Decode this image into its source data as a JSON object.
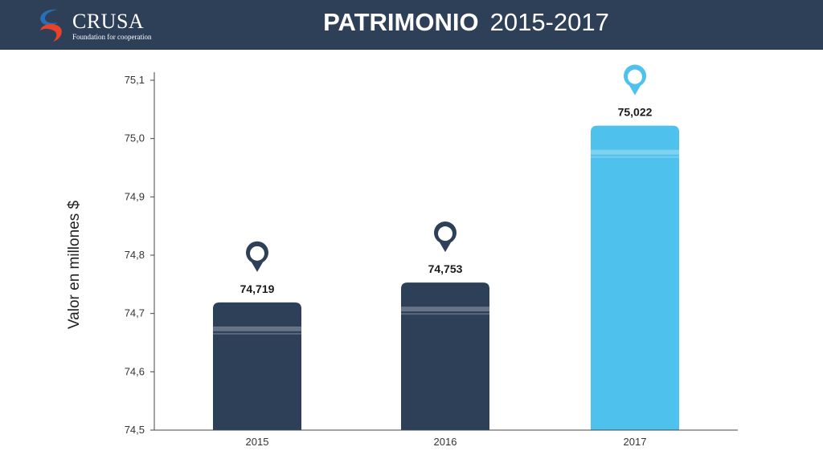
{
  "header": {
    "logo_name": "CRUSA",
    "logo_tagline": "Foundation for cooperation",
    "title_main": "PATRIMONIO",
    "title_years": "2015-2017"
  },
  "colors": {
    "header_bg": "#2e3f58",
    "bar_dark": "#2e3f58",
    "bar_highlight": "#4ec2ec",
    "logo_red": "#e8412c",
    "logo_blue": "#2a6fb5"
  },
  "icons": [
    "map-pin-icon"
  ],
  "chart_data": {
    "type": "bar",
    "title": "PATRIMONIO 2015-2017",
    "ylabel": "Valor en millones  $",
    "xlabel": "",
    "categories": [
      "2015",
      "2016",
      "2017"
    ],
    "values": [
      74.719,
      74.753,
      75.022
    ],
    "value_labels": [
      "74,719",
      "74,753",
      "75,022"
    ],
    "bar_colors": [
      "#2e3f58",
      "#2e3f58",
      "#4ec2ec"
    ],
    "ylim": [
      74.5,
      75.1
    ],
    "yticks": [
      74.5,
      74.6,
      74.7,
      74.8,
      74.9,
      75.0,
      75.1
    ],
    "ytick_labels": [
      "74,5",
      "74,6",
      "74,7",
      "74,8",
      "74,9",
      "75,0",
      "75,1"
    ],
    "grid": false,
    "legend": "none"
  }
}
